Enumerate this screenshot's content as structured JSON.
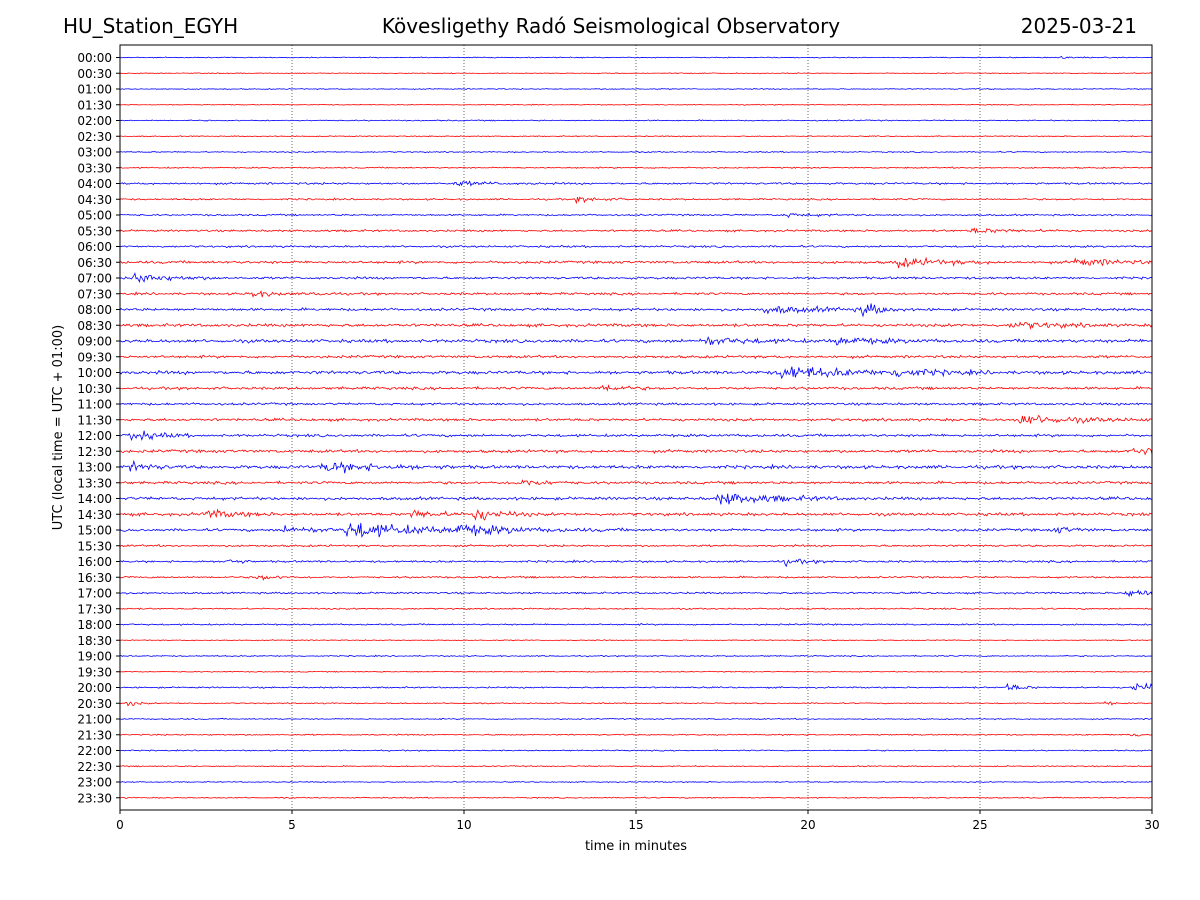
{
  "header": {
    "station": "HU_Station_EGYH",
    "title": "Kövesligethy Radó Seismological Observatory",
    "date": "2025-03-21"
  },
  "chart_data": {
    "type": "line",
    "xlabel": "time in minutes",
    "ylabel": "UTC (local time = UTC + 01:00)",
    "xlim": [
      0,
      30
    ],
    "x_ticks": [
      "0",
      "5",
      "10",
      "15",
      "20",
      "25",
      "30"
    ],
    "x_tick_values": [
      0,
      5,
      10,
      15,
      20,
      25,
      30
    ],
    "vertical_grid": "dotted at each x tick",
    "trace_colors": [
      "#0000ff",
      "#ff0000"
    ],
    "row_labels": [
      "00:00",
      "00:30",
      "01:00",
      "01:30",
      "02:00",
      "02:30",
      "03:00",
      "03:30",
      "04:00",
      "04:30",
      "05:00",
      "05:30",
      "06:00",
      "06:30",
      "07:00",
      "07:30",
      "08:00",
      "08:30",
      "09:00",
      "09:30",
      "10:00",
      "10:30",
      "11:00",
      "11:30",
      "12:00",
      "12:30",
      "13:00",
      "13:30",
      "14:00",
      "14:30",
      "15:00",
      "15:30",
      "16:00",
      "16:30",
      "17:00",
      "17:30",
      "18:00",
      "18:30",
      "19:00",
      "19:30",
      "20:00",
      "20:30",
      "21:00",
      "21:30",
      "22:00",
      "22:30",
      "23:00",
      "23:30"
    ],
    "noise_levels": [
      0.6,
      0.5,
      0.6,
      0.5,
      0.7,
      0.6,
      0.7,
      0.8,
      1.2,
      1.0,
      1.0,
      1.2,
      1.2,
      1.6,
      1.4,
      1.4,
      1.6,
      1.8,
      2.0,
      1.6,
      2.0,
      1.6,
      1.4,
      1.6,
      1.6,
      1.8,
      2.0,
      1.6,
      1.8,
      1.8,
      1.6,
      1.2,
      1.2,
      1.1,
      1.1,
      0.9,
      0.9,
      0.6,
      0.7,
      0.6,
      0.9,
      0.7,
      0.7,
      0.8,
      0.7,
      0.7,
      0.6,
      0.7
    ],
    "events": [
      {
        "row": 0,
        "t": 27.3,
        "amp": 2.0,
        "dur": 0.4
      },
      {
        "row": 8,
        "t": 9.8,
        "amp": 2.5,
        "dur": 1.0
      },
      {
        "row": 9,
        "t": 13.3,
        "amp": 3.5,
        "dur": 0.6
      },
      {
        "row": 10,
        "t": 19.3,
        "amp": 2.5,
        "dur": 0.8
      },
      {
        "row": 11,
        "t": 24.8,
        "amp": 3.0,
        "dur": 1.0
      },
      {
        "row": 13,
        "t": 22.6,
        "amp": 5.5,
        "dur": 1.2
      },
      {
        "row": 13,
        "t": 27.8,
        "amp": 4.5,
        "dur": 1.2
      },
      {
        "row": 14,
        "t": 0.4,
        "amp": 6.0,
        "dur": 1.0
      },
      {
        "row": 15,
        "t": 3.8,
        "amp": 5.0,
        "dur": 0.5
      },
      {
        "row": 15,
        "t": 5.6,
        "amp": 4.0,
        "dur": 0.3
      },
      {
        "row": 16,
        "t": 18.8,
        "amp": 4.5,
        "dur": 1.5
      },
      {
        "row": 16,
        "t": 21.6,
        "amp": 8.0,
        "dur": 0.5
      },
      {
        "row": 17,
        "t": 26.0,
        "amp": 4.0,
        "dur": 1.2
      },
      {
        "row": 18,
        "t": 17.0,
        "amp": 4.5,
        "dur": 1.2
      },
      {
        "row": 18,
        "t": 20.8,
        "amp": 4.5,
        "dur": 1.2
      },
      {
        "row": 20,
        "t": 19.3,
        "amp": 9.0,
        "dur": 1.5
      },
      {
        "row": 20,
        "t": 22.5,
        "amp": 5.0,
        "dur": 1.2
      },
      {
        "row": 21,
        "t": 14.0,
        "amp": 4.5,
        "dur": 0.6
      },
      {
        "row": 23,
        "t": 26.2,
        "amp": 6.0,
        "dur": 1.5
      },
      {
        "row": 24,
        "t": 0.3,
        "amp": 7.0,
        "dur": 0.7
      },
      {
        "row": 25,
        "t": 29.5,
        "amp": 4.0,
        "dur": 1.2
      },
      {
        "row": 26,
        "t": 0.3,
        "amp": 6.0,
        "dur": 0.5
      },
      {
        "row": 26,
        "t": 6.0,
        "amp": 6.0,
        "dur": 1.5
      },
      {
        "row": 27,
        "t": 11.5,
        "amp": 4.5,
        "dur": 0.7
      },
      {
        "row": 28,
        "t": 17.5,
        "amp": 7.0,
        "dur": 1.5
      },
      {
        "row": 29,
        "t": 2.5,
        "amp": 5.0,
        "dur": 0.8
      },
      {
        "row": 29,
        "t": 8.5,
        "amp": 5.0,
        "dur": 0.7
      },
      {
        "row": 29,
        "t": 10.3,
        "amp": 8.0,
        "dur": 0.7
      },
      {
        "row": 30,
        "t": 6.7,
        "amp": 10.0,
        "dur": 2.0
      },
      {
        "row": 30,
        "t": 4.8,
        "amp": 4.0,
        "dur": 1.0
      },
      {
        "row": 30,
        "t": 9.8,
        "amp": 4.5,
        "dur": 2.0
      },
      {
        "row": 30,
        "t": 27.2,
        "amp": 4.0,
        "dur": 0.5
      },
      {
        "row": 32,
        "t": 3.1,
        "amp": 5.0,
        "dur": 0.3
      },
      {
        "row": 32,
        "t": 19.3,
        "amp": 3.5,
        "dur": 0.6
      },
      {
        "row": 33,
        "t": 4.0,
        "amp": 3.5,
        "dur": 0.5
      },
      {
        "row": 34,
        "t": 29.3,
        "amp": 4.5,
        "dur": 1.0
      },
      {
        "row": 40,
        "t": 25.8,
        "amp": 5.0,
        "dur": 0.4
      },
      {
        "row": 40,
        "t": 29.5,
        "amp": 5.5,
        "dur": 1.2
      },
      {
        "row": 41,
        "t": 0.2,
        "amp": 3.5,
        "dur": 0.3
      },
      {
        "row": 41,
        "t": 28.6,
        "amp": 3.5,
        "dur": 0.2
      },
      {
        "row": 43,
        "t": 29.3,
        "amp": 3.0,
        "dur": 0.5
      }
    ]
  }
}
